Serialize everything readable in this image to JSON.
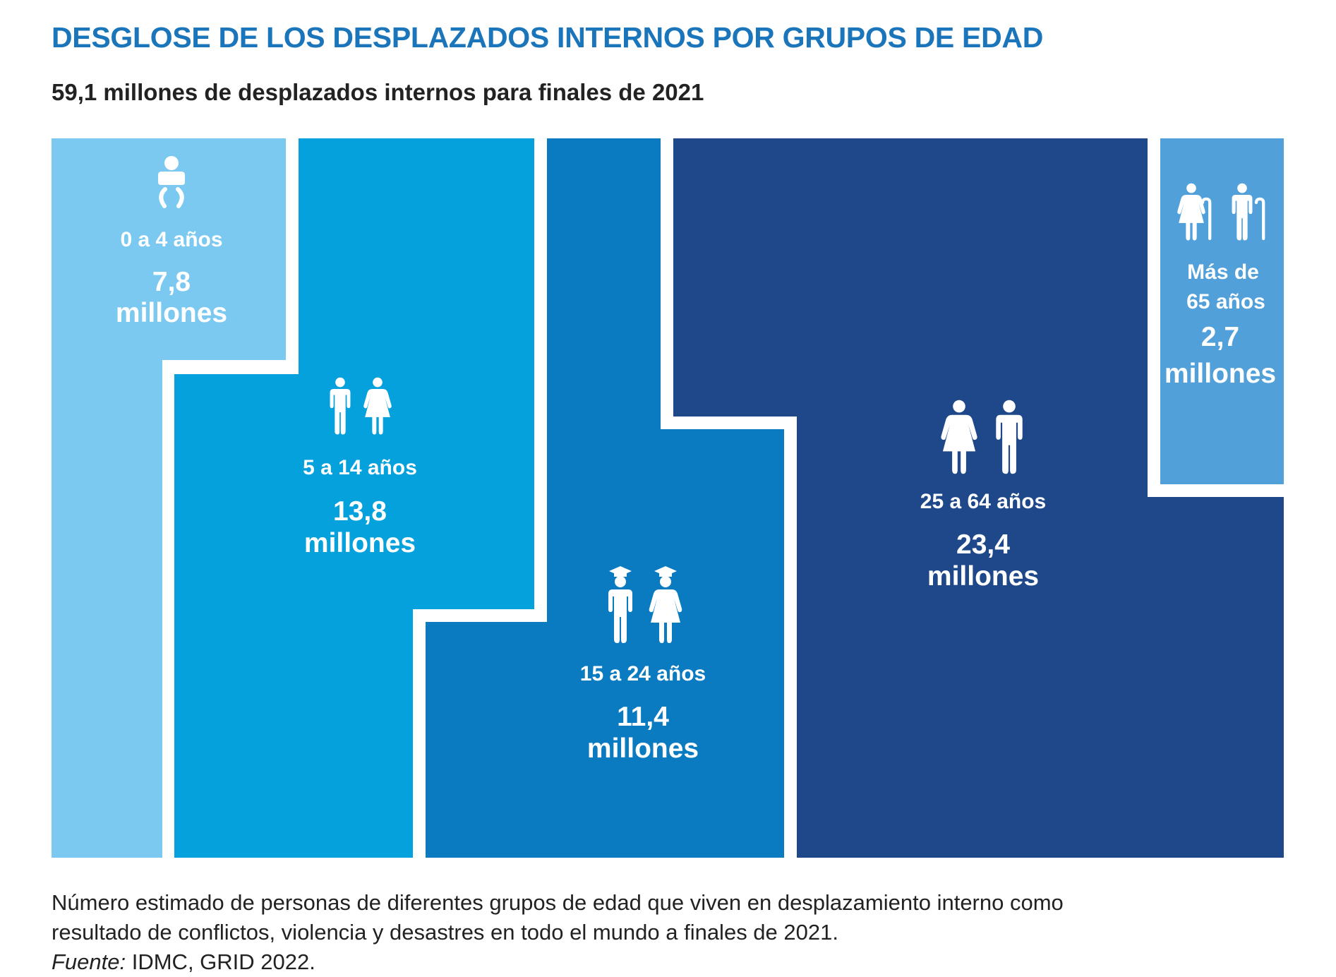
{
  "title": "DESGLOSE DE LOS DESPLAZADOS INTERNOS POR GRUPOS DE EDAD",
  "subtitle": "59,1 millones de desplazados internos para finales de 2021",
  "colors": {
    "title": "#1b75bb",
    "text": "#222222",
    "group_0_4": "#7bc9f1",
    "group_5_14": "#05a1dd",
    "group_15_24": "#0b7bc1",
    "group_25_64": "#1e4889",
    "group_65_plus": "#52a0d9"
  },
  "chart_data": {
    "type": "stepped-area",
    "title": "DESGLOSE DE LOS DESPLAZADOS INTERNOS POR GRUPOS DE EDAD",
    "total": {
      "value": 59.1,
      "unit": "millones",
      "label": "59,1 millones de desplazados internos para finales de 2021"
    },
    "groups": [
      {
        "age_label": "0 a 4 años",
        "value": 7.8,
        "value_label": "7,8",
        "unit_label": "millones",
        "icon": "baby-icon",
        "color": "#7bc9f1"
      },
      {
        "age_label": "5 a 14 años",
        "value": 13.8,
        "value_label": "13,8",
        "unit_label": "millones",
        "icon": "children-icon",
        "color": "#05a1dd"
      },
      {
        "age_label": "15 a 24 años",
        "value": 11.4,
        "value_label": "11,4",
        "unit_label": "millones",
        "icon": "students-icon",
        "color": "#0b7bc1"
      },
      {
        "age_label": "25 a 64 años",
        "value": 23.4,
        "value_label": "23,4",
        "unit_label": "millones",
        "icon": "adults-icon",
        "color": "#1e4889"
      },
      {
        "age_label_lines": [
          "Más de",
          "65 años"
        ],
        "value": 2.7,
        "value_label": "2,7",
        "unit_label": "millones",
        "icon": "elderly-icon",
        "color": "#52a0d9"
      }
    ]
  },
  "caption": {
    "line1": "Número estimado de personas de diferentes grupos de edad que viven en desplazamiento interno como",
    "line2": "resultado de conflictos, violencia y desastres en todo el mundo a finales de 2021.",
    "source_label": "Fuente:",
    "source_text": " IDMC, GRID 2022."
  }
}
